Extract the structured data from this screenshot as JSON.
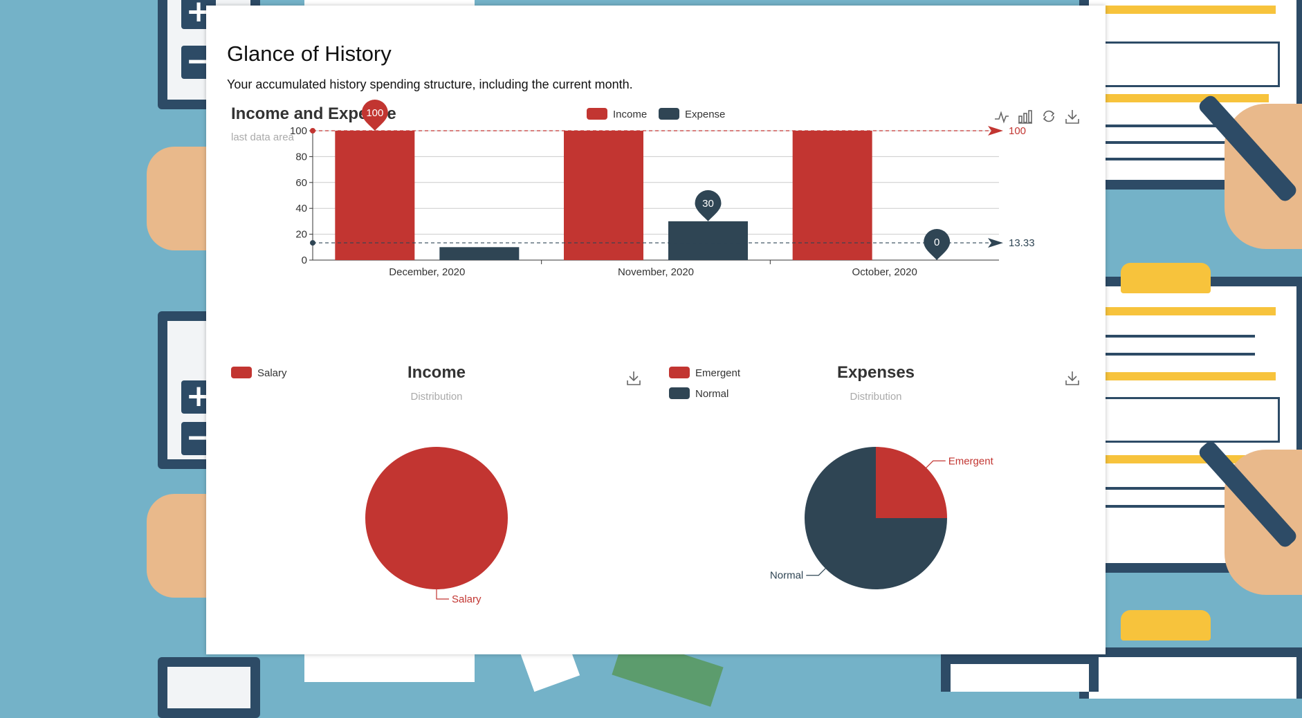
{
  "page": {
    "title": "Glance of History",
    "subtitle": "Your accumulated history spending structure, including the current month."
  },
  "colors": {
    "income": "#c23531",
    "expense": "#2f4554",
    "axis": "#333333",
    "grid": "#cccccc",
    "muted": "#aaaaaa"
  },
  "toolbox": {
    "line_icon": "line-chart-icon",
    "bar_icon": "bar-chart-icon",
    "restore_icon": "restore-icon",
    "download_icon": "download-icon"
  },
  "chart_data": [
    {
      "type": "bar",
      "title": "Income and Expense",
      "subtitle": "last data area",
      "categories": [
        "December, 2020",
        "November, 2020",
        "October, 2020"
      ],
      "series": [
        {
          "name": "Income",
          "values": [
            100,
            100,
            100
          ]
        },
        {
          "name": "Expense",
          "values": [
            10,
            30,
            0
          ]
        }
      ],
      "ylim": [
        0,
        100
      ],
      "yticks": [
        0,
        20,
        40,
        60,
        80,
        100
      ],
      "markpoints": [
        {
          "series": "Income",
          "category": "December, 2020",
          "value": 100,
          "label": "100"
        },
        {
          "series": "Expense",
          "category": "November, 2020",
          "value": 30,
          "label": "30"
        },
        {
          "series": "Expense",
          "category": "October, 2020",
          "value": 0,
          "label": "0"
        }
      ],
      "marklines": [
        {
          "series": "Income",
          "value": 100,
          "label": "100"
        },
        {
          "series": "Expense",
          "value": 13.33,
          "label": "13.33"
        }
      ],
      "legend": "top-center",
      "grid": true
    },
    {
      "type": "pie",
      "title": "Income",
      "subtitle": "Distribution",
      "legend": [
        "Salary"
      ],
      "slices": [
        {
          "name": "Salary",
          "value": 100
        }
      ]
    },
    {
      "type": "pie",
      "title": "Expenses",
      "subtitle": "Distribution",
      "legend": [
        "Emergent",
        "Normal"
      ],
      "slices": [
        {
          "name": "Emergent",
          "value": 10
        },
        {
          "name": "Normal",
          "value": 30
        }
      ]
    }
  ]
}
